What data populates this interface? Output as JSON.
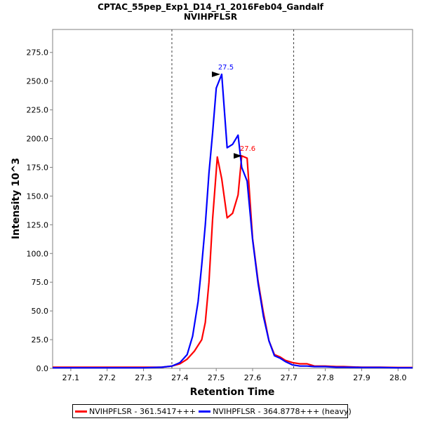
{
  "chart_data": {
    "type": "line",
    "title": "CPTAC_55pep_Exp1_D14_r1_2016Feb04_Gandalf",
    "subtitle": "NVIHPFLSR",
    "xlabel": "Retention Time",
    "ylabel": "Intensity 10^3",
    "xlim": [
      27.05,
      28.04
    ],
    "ylim": [
      0,
      295
    ],
    "x_ticks": [
      "27.1",
      "27.2",
      "27.3",
      "27.4",
      "27.5",
      "27.6",
      "27.7",
      "27.8",
      "27.9",
      "28.0"
    ],
    "y_ticks": [
      "0.0",
      "25.0",
      "50.0",
      "75.0",
      "100.0",
      "125.0",
      "150.0",
      "175.0",
      "200.0",
      "225.0",
      "250.0",
      "275.0"
    ],
    "boundaries": [
      27.378,
      27.713
    ],
    "grid": false,
    "legend_position": "bottom",
    "series": [
      {
        "name": "NVIHPFLSR - 361.5417+++",
        "color": "#ff0000",
        "x": [
          27.05,
          27.1,
          27.2,
          27.3,
          27.35,
          27.378,
          27.4,
          27.42,
          27.44,
          27.46,
          27.47,
          27.48,
          27.49,
          27.503,
          27.515,
          27.53,
          27.545,
          27.56,
          27.57,
          27.585,
          27.6,
          27.615,
          27.63,
          27.645,
          27.66,
          27.675,
          27.69,
          27.71,
          27.73,
          27.75,
          27.77,
          27.8,
          27.83,
          27.85,
          27.9,
          27.95,
          28.0,
          28.04
        ],
        "y": [
          1.0,
          1.0,
          1.0,
          1.0,
          1.0,
          2,
          4,
          8,
          15,
          25,
          40,
          75,
          130,
          184,
          165,
          131,
          135,
          151,
          185,
          183,
          113,
          76,
          48,
          24,
          12,
          10,
          7,
          5,
          4,
          4,
          2,
          2,
          1.5,
          1.5,
          1,
          1,
          0.8,
          0.8
        ],
        "peak": {
          "x": 27.575,
          "y": 185,
          "label": "27.6"
        }
      },
      {
        "name": "NVIHPFLSR - 364.8778+++ (heavy)",
        "color": "#0000ff",
        "x": [
          27.05,
          27.1,
          27.2,
          27.3,
          27.35,
          27.378,
          27.4,
          27.42,
          27.435,
          27.45,
          27.46,
          27.47,
          27.48,
          27.49,
          27.5,
          27.515,
          27.53,
          27.545,
          27.56,
          27.57,
          27.585,
          27.6,
          27.615,
          27.63,
          27.645,
          27.66,
          27.675,
          27.69,
          27.71,
          27.73,
          27.75,
          27.77,
          27.8,
          27.83,
          27.85,
          27.9,
          27.95,
          28.0,
          28.04
        ],
        "y": [
          0.5,
          0.5,
          0.5,
          0.5,
          1.0,
          2,
          5,
          12,
          28,
          58,
          90,
          125,
          170,
          205,
          244,
          256,
          192,
          195,
          203,
          175,
          163,
          112,
          74,
          45,
          24,
          11,
          9,
          6,
          3,
          2,
          2,
          1.5,
          1.5,
          1,
          1,
          0.8,
          0.8,
          0.5,
          0.5
        ],
        "peak": {
          "x": 27.515,
          "y": 256,
          "label": "27.5"
        }
      }
    ]
  }
}
